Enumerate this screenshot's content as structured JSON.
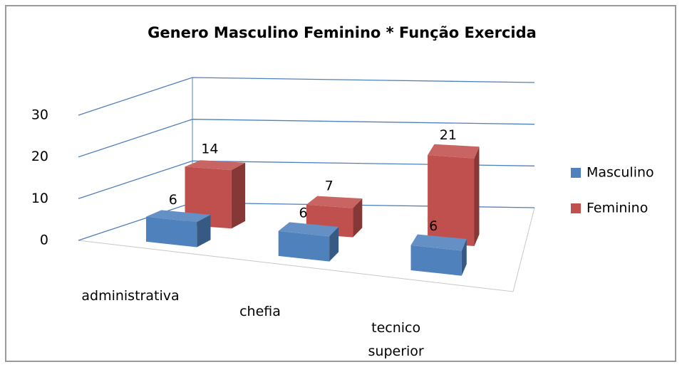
{
  "chart_data": {
    "type": "bar3d",
    "title": "Genero Masculino Feminino * Função Exercida",
    "categories": [
      "administrativa",
      "chefia",
      "tecnico superior"
    ],
    "series": [
      {
        "name": "Masculino",
        "color": "#4f81bd",
        "values": [
          6,
          6,
          6
        ]
      },
      {
        "name": "Feminino",
        "color": "#c0504d",
        "values": [
          14,
          7,
          21
        ]
      }
    ],
    "ylim": [
      0,
      30
    ],
    "yticks": [
      0,
      10,
      20,
      30
    ],
    "grid": true,
    "legend": "right",
    "data_labels": true
  }
}
